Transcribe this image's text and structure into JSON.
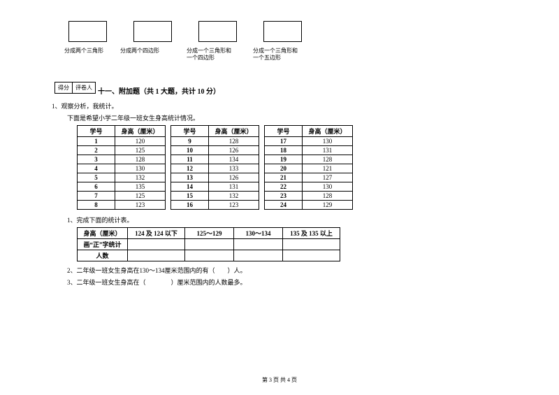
{
  "shapes": [
    {
      "label": "分成两个三角形"
    },
    {
      "label": "分成两个四边形"
    },
    {
      "label": "分成一个三角形和\n一个四边形"
    },
    {
      "label": "分成一个三角形和\n一个五边形"
    }
  ],
  "score": {
    "label1": "得分",
    "label2": "评卷人"
  },
  "section": {
    "title": "十一、附加题（共 1 大题，共计 10 分）"
  },
  "q1": {
    "num": "1、观察分析，我统计。",
    "desc": "下面是希望小学二年级一班女生身高统计情况。"
  },
  "headers": {
    "id": "学号",
    "h": "身高（厘米）"
  },
  "rows": [
    {
      "a": "1",
      "b": "120",
      "c": "9",
      "d": "128",
      "e": "17",
      "f": "130"
    },
    {
      "a": "2",
      "b": "125",
      "c": "10",
      "d": "126",
      "e": "18",
      "f": "131"
    },
    {
      "a": "3",
      "b": "128",
      "c": "11",
      "d": "134",
      "e": "19",
      "f": "128"
    },
    {
      "a": "4",
      "b": "130",
      "c": "12",
      "d": "133",
      "e": "20",
      "f": "121"
    },
    {
      "a": "5",
      "b": "132",
      "c": "13",
      "d": "126",
      "e": "21",
      "f": "127"
    },
    {
      "a": "6",
      "b": "135",
      "c": "14",
      "d": "131",
      "e": "22",
      "f": "130"
    },
    {
      "a": "7",
      "b": "125",
      "c": "15",
      "d": "132",
      "e": "23",
      "f": "128"
    },
    {
      "a": "8",
      "b": "123",
      "c": "16",
      "d": "123",
      "e": "24",
      "f": "129"
    }
  ],
  "sub1": "1、完成下面的统计表。",
  "summaryHeaders": {
    "c0": "身高（厘米）",
    "c1": "124 及 124 以下",
    "c2": "125～129",
    "c3": "130～134",
    "c4": "135 及 135 以上"
  },
  "summaryRows": {
    "r1": "画“正”字统计",
    "r2": "人数"
  },
  "sub2": "2、二年级一班女生身高在130～134厘米范围内的有（　　）人。",
  "sub3": "3、二年级一班女生身高在（　　　　）厘米范围内的人数最多。",
  "footer": "第 3 页 共 4 页"
}
